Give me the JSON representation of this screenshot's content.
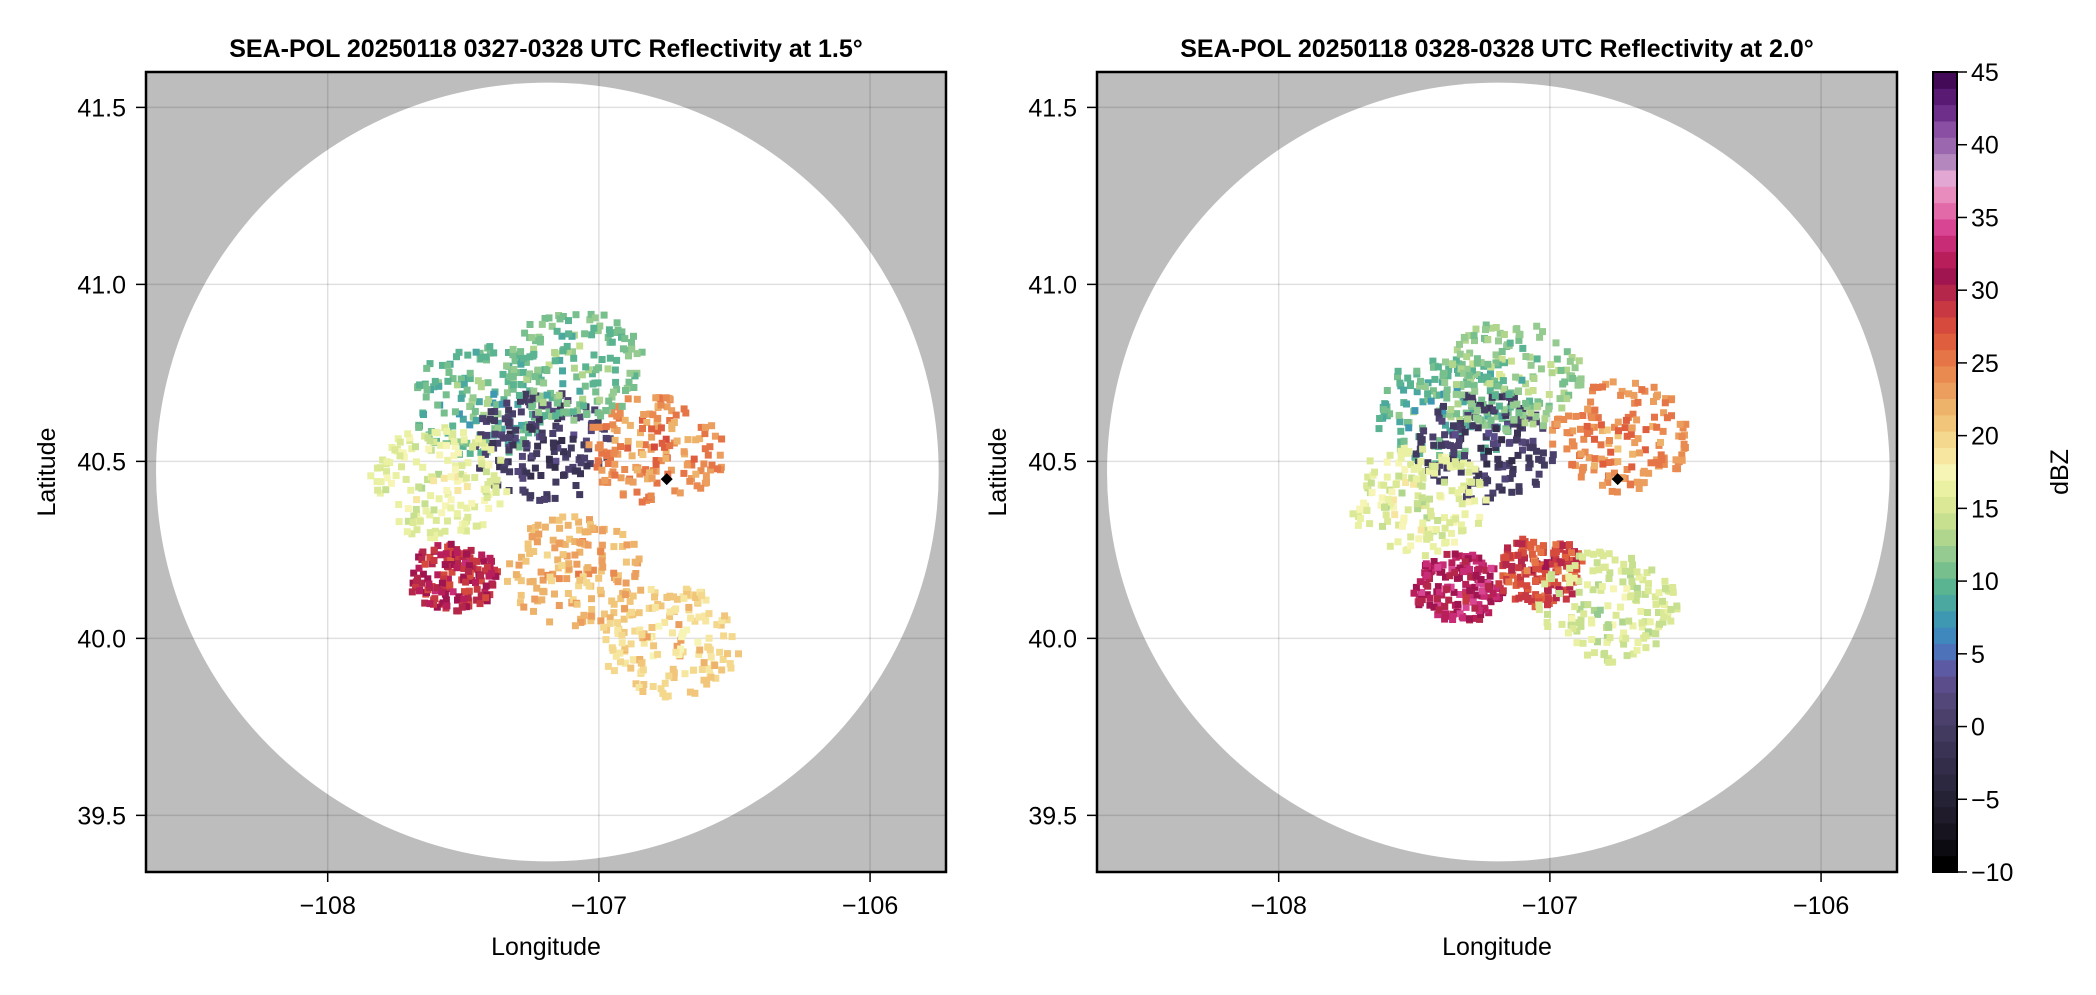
{
  "chart_data": [
    {
      "type": "heatmap",
      "subtype": "radar PPI reflectivity map",
      "title": "SEA-POL 20250118 0327-0328 UTC Reflectivity at 1.5°",
      "xlabel": "Longitude",
      "ylabel": "Latitude",
      "xlim": [
        -108.67,
        -105.72
      ],
      "ylim": [
        39.34,
        41.6
      ],
      "xticks": [
        -108,
        -107,
        -106
      ],
      "xtick_labels": [
        "−108",
        "−107",
        "−106"
      ],
      "yticks": [
        39.5,
        40.0,
        40.5,
        41.0,
        41.5
      ],
      "ytick_labels": [
        "39.5",
        "40.0",
        "40.5",
        "41.0",
        "41.5"
      ],
      "grid": true,
      "radar_range_circle": {
        "center_lon": -107.19,
        "center_lat": 40.47,
        "radius_deg_lat": 1.1
      },
      "radar_site": {
        "lon": -106.75,
        "lat": 40.45,
        "marker": "diamond"
      },
      "echo_regions": [
        {
          "name": "northwest-cloud",
          "lon": -107.45,
          "lat": 40.68,
          "dbz": 10
        },
        {
          "name": "near-radar-weak",
          "lon": -107.22,
          "lat": 40.55,
          "dbz": 0
        },
        {
          "name": "central-band",
          "lon": -107.6,
          "lat": 40.45,
          "dbz": 16
        },
        {
          "name": "southwest-core",
          "lon": -107.55,
          "lat": 40.18,
          "dbz": 30
        },
        {
          "name": "south-spokes",
          "lon": -107.1,
          "lat": 40.2,
          "dbz": 22
        },
        {
          "name": "east-cells",
          "lon": -106.8,
          "lat": 40.55,
          "dbz": 24
        },
        {
          "name": "southeast-trail",
          "lon": -106.75,
          "lat": 40.0,
          "dbz": 20
        },
        {
          "name": "north-fragment",
          "lon": -107.1,
          "lat": 40.78,
          "dbz": 11
        }
      ]
    },
    {
      "type": "heatmap",
      "subtype": "radar PPI reflectivity map",
      "title": "SEA-POL 20250118 0328-0328 UTC Reflectivity at 2.0°",
      "xlabel": "Longitude",
      "ylabel": "Latitude",
      "xlim": [
        -108.67,
        -105.72
      ],
      "ylim": [
        39.34,
        41.6
      ],
      "xticks": [
        -108,
        -107,
        -106
      ],
      "xtick_labels": [
        "−108",
        "−107",
        "−106"
      ],
      "yticks": [
        39.5,
        40.0,
        40.5,
        41.0,
        41.5
      ],
      "ytick_labels": [
        "39.5",
        "40.0",
        "40.5",
        "41.0",
        "41.5"
      ],
      "grid": true,
      "radar_range_circle": {
        "center_lon": -107.19,
        "center_lat": 40.47,
        "radius_deg_lat": 1.1
      },
      "radar_site": {
        "lon": -106.75,
        "lat": 40.45,
        "marker": "diamond"
      },
      "echo_regions": [
        {
          "name": "northwest-cloud",
          "lon": -107.4,
          "lat": 40.65,
          "dbz": 10
        },
        {
          "name": "near-radar-weak",
          "lon": -107.25,
          "lat": 40.55,
          "dbz": 0
        },
        {
          "name": "central-band",
          "lon": -107.5,
          "lat": 40.4,
          "dbz": 16
        },
        {
          "name": "southwest-core",
          "lon": -107.35,
          "lat": 40.15,
          "dbz": 32
        },
        {
          "name": "south-core",
          "lon": -107.05,
          "lat": 40.2,
          "dbz": 28
        },
        {
          "name": "east-triangle",
          "lon": -106.75,
          "lat": 40.58,
          "dbz": 24
        },
        {
          "name": "north-fragment",
          "lon": -107.15,
          "lat": 40.75,
          "dbz": 12
        },
        {
          "name": "southeast-trail",
          "lon": -106.8,
          "lat": 40.1,
          "dbz": 15
        }
      ]
    }
  ],
  "colorbar": {
    "label": "dBZ",
    "range": [
      -10,
      45
    ],
    "ticks": [
      -10,
      -5,
      0,
      5,
      10,
      15,
      20,
      25,
      30,
      35,
      40,
      45
    ],
    "tick_labels": [
      "−10",
      "−5",
      "0",
      "5",
      "10",
      "15",
      "20",
      "25",
      "30",
      "35",
      "40",
      "45"
    ],
    "colors": [
      "#000000",
      "#0d0b12",
      "#17141f",
      "#1f1b2b",
      "#262236",
      "#2c2840",
      "#332d49",
      "#3a3354",
      "#423a5f",
      "#4a406b",
      "#534679",
      "#5b4d8b",
      "#5c5aa2",
      "#4d72ba",
      "#3e88bd",
      "#3f98b2",
      "#4aa8a0",
      "#5ab391",
      "#77bf8d",
      "#95cb90",
      "#b0d68e",
      "#c7e08f",
      "#dbe996",
      "#eaf1a3",
      "#f7f5b5",
      "#f6e6a0",
      "#f4d88d",
      "#f1c67a",
      "#eeb36a",
      "#eb9e5d",
      "#e98a51",
      "#e57446",
      "#df5e3e",
      "#d54a3d",
      "#c73842",
      "#b4264a",
      "#a0144f",
      "#b81e5a",
      "#c82c76",
      "#d84593",
      "#e36aa8",
      "#e88cbd",
      "#e2a7d2",
      "#b487bf",
      "#9b68af",
      "#8a4ea2",
      "#6e2f8a",
      "#581a72",
      "#430a58"
    ],
    "nan_color": "#bdbdbd",
    "circle_fill": "#ffffff"
  }
}
